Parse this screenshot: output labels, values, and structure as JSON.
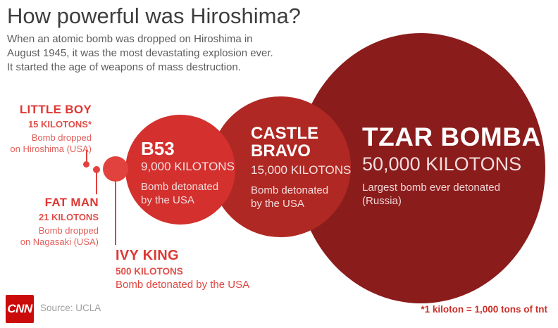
{
  "header": {
    "title": "How powerful was Hiroshima?",
    "subtitle_line1": "When an atomic bomb was dropped on Hiroshima in",
    "subtitle_line2": "August 1945, it was the most devastating explosion ever.",
    "subtitle_line3": "It started the age of weapons of mass destruction."
  },
  "callouts": {
    "little_boy": {
      "name": "LITTLE BOY",
      "kilotons": "15 KILOTONS*",
      "desc_line1": "Bomb dropped",
      "desc_line2": "on Hiroshima (USA)"
    },
    "fat_man": {
      "name": "FAT MAN",
      "kilotons": "21 KILOTONS",
      "desc_line1": "Bomb dropped",
      "desc_line2": "on Nagasaki (USA)"
    },
    "ivy_king": {
      "name": "IVY KING",
      "kilotons": "500 KILOTONS",
      "desc": "Bomb detonated by the USA"
    }
  },
  "bubbles": {
    "b53": {
      "name": "B53",
      "kilotons": "9,000 KILOTONS",
      "desc_line1": "Bomb detonated",
      "desc_line2": "by the USA"
    },
    "castle_bravo": {
      "name_line1": "CASTLE",
      "name_line2": "BRAVO",
      "kilotons": "15,000 KILOTONS",
      "desc_line1": "Bomb detonated",
      "desc_line2": "by the USA"
    },
    "tzar_bomba": {
      "name": "TZAR BOMBA",
      "kilotons": "50,000 KILOTONS",
      "desc_line1": "Largest bomb ever detonated",
      "desc_line2": "(Russia)"
    }
  },
  "footer": {
    "logo": "CNN",
    "source": "Source: UCLA",
    "footnote": "*1 kiloton = 1,000 tons of tnt"
  },
  "colors": {
    "tzar_bomba_circle": "#8b1c1c",
    "castle_bravo_circle": "#b02823",
    "b53_circle": "#d3302e",
    "small_bomb_red": "#e2423e",
    "callout_text_red": "#dd3834",
    "title_gray": "#3e3e3e",
    "subtitle_gray": "#5d5d5d",
    "cnn_logo_red": "#cb0a0a",
    "footnote_red": "#c92f28",
    "background": "#ffffff"
  },
  "chart_data": {
    "type": "bubble",
    "title": "How powerful was Hiroshima?",
    "unit": "kilotons",
    "points": [
      {
        "label": "Little Boy",
        "kilotons": 15,
        "note": "Bomb dropped on Hiroshima (USA)"
      },
      {
        "label": "Fat Man",
        "kilotons": 21,
        "note": "Bomb dropped on Nagasaki (USA)"
      },
      {
        "label": "Ivy King",
        "kilotons": 500,
        "note": "Bomb detonated by the USA"
      },
      {
        "label": "B53",
        "kilotons": 9000,
        "note": "Bomb detonated by the USA"
      },
      {
        "label": "Castle Bravo",
        "kilotons": 15000,
        "note": "Bomb detonated by the USA"
      },
      {
        "label": "Tzar Bomba",
        "kilotons": 50000,
        "note": "Largest bomb ever detonated (Russia)"
      }
    ],
    "legend_position": "none",
    "grid": false,
    "footnote": "*1 kiloton = 1,000 tons of tnt",
    "source": "Source: UCLA"
  }
}
